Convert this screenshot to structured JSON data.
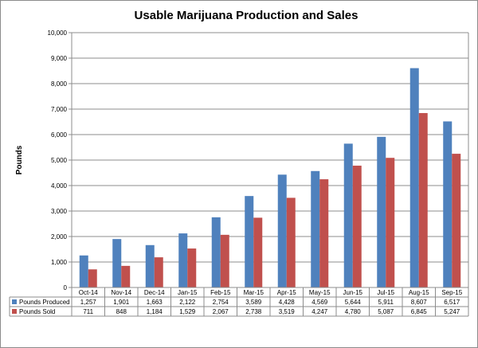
{
  "chart_data": {
    "type": "bar",
    "title": "Usable Marijuana Production and Sales",
    "xlabel": "",
    "ylabel": "Pounds",
    "ylim": [
      0,
      10000
    ],
    "yticks": [
      "0",
      "1,000",
      "2,000",
      "3,000",
      "4,000",
      "5,000",
      "6,000",
      "7,000",
      "8,000",
      "9,000",
      "10,000"
    ],
    "ytick_values": [
      0,
      1000,
      2000,
      3000,
      4000,
      5000,
      6000,
      7000,
      8000,
      9000,
      10000
    ],
    "grid": true,
    "legend": "data-table",
    "categories": [
      "Oct-14",
      "Nov-14",
      "Dec-14",
      "Jan-15",
      "Feb-15",
      "Mar-15",
      "Apr-15",
      "May-15",
      "Jun-15",
      "Jul-15",
      "Aug-15",
      "Sep-15"
    ],
    "series": [
      {
        "name": "Pounds Produced",
        "color": "#4F81BD",
        "values": [
          1257,
          1901,
          1663,
          2122,
          2754,
          3589,
          4428,
          4569,
          5644,
          5911,
          8607,
          6517
        ],
        "labels": [
          "1,257",
          "1,901",
          "1,663",
          "2,122",
          "2,754",
          "3,589",
          "4,428",
          "4,569",
          "5,644",
          "5,911",
          "8,607",
          "6,517"
        ]
      },
      {
        "name": "Pounds Sold",
        "color": "#C0504D",
        "values": [
          711,
          848,
          1184,
          1529,
          2067,
          2738,
          3519,
          4247,
          4780,
          5087,
          6845,
          5247
        ],
        "labels": [
          "711",
          "848",
          "1,184",
          "1,529",
          "2,067",
          "2,738",
          "3,519",
          "4,247",
          "4,780",
          "5,087",
          "6,845",
          "5,247"
        ]
      }
    ]
  }
}
